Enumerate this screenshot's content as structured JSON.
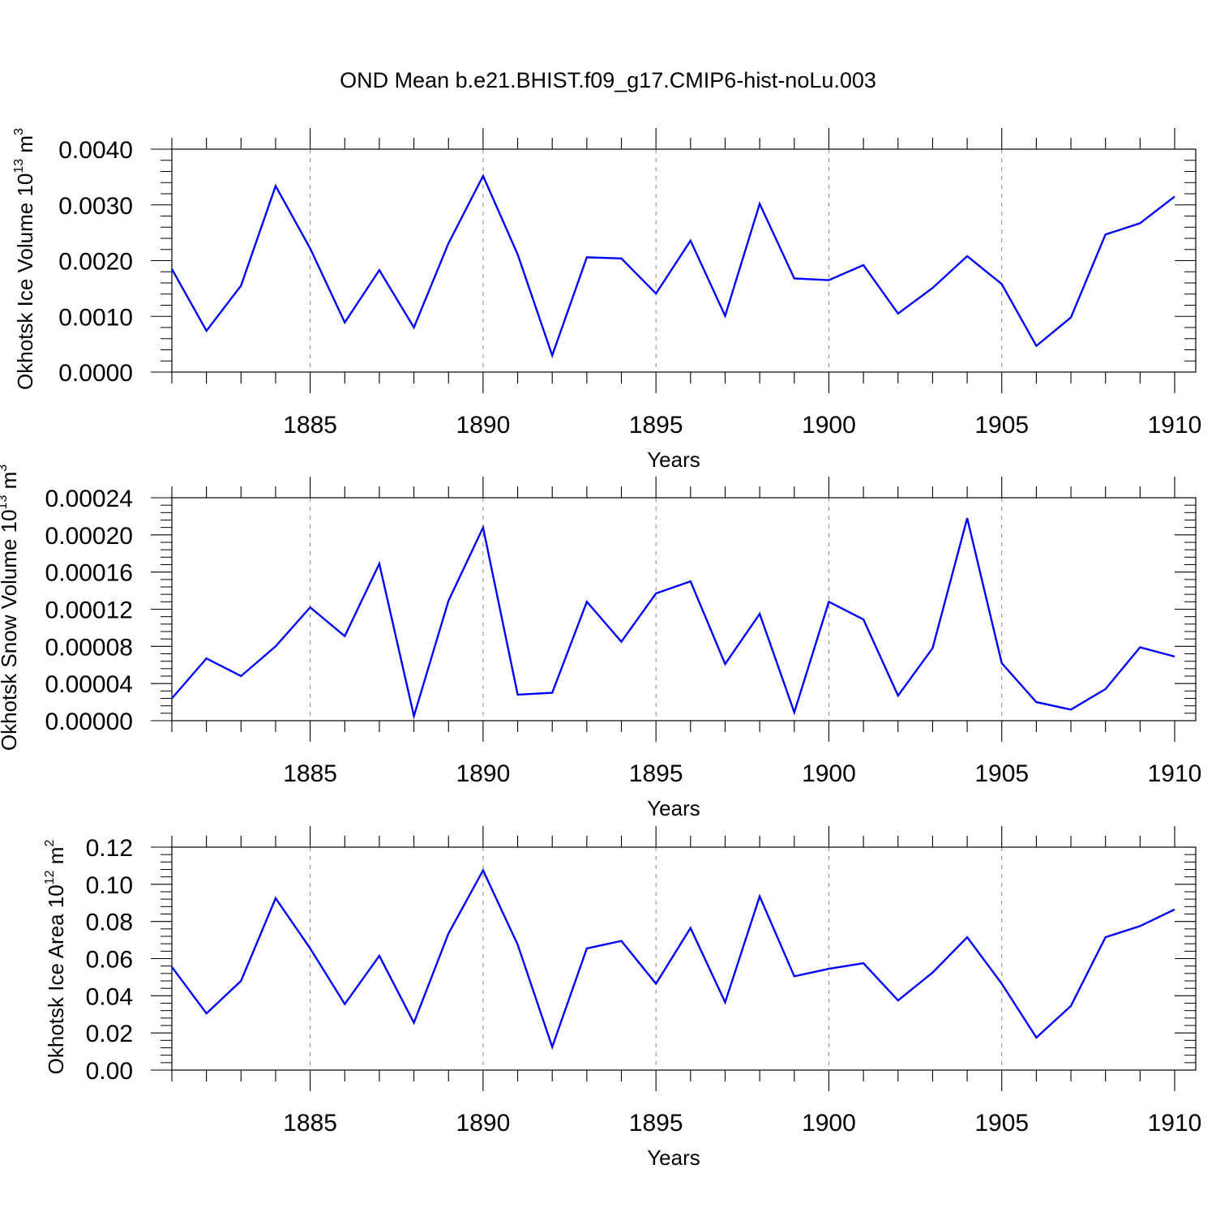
{
  "title": "OND Mean b.e21.BHIST.f09_g17.CMIP6-hist-noLu.003",
  "chart_data": [
    {
      "type": "line",
      "series_color": "#0000ff",
      "xlabel": "Years",
      "ylabel": "Okhotsk Ice Volume 10",
      "ylabel_exp": "13",
      "ylabel_unit": "m",
      "ylabel_unit_exp": "3",
      "xlim": [
        1881,
        1910
      ],
      "ylim": [
        0,
        0.004
      ],
      "yticks": [
        "0.0000",
        "0.0010",
        "0.0020",
        "0.0030",
        "0.0040"
      ],
      "ytick_values": [
        0,
        0.001,
        0.002,
        0.003,
        0.004
      ],
      "xticks": [
        "1885",
        "1890",
        "1895",
        "1900",
        "1905",
        "1910"
      ],
      "xtick_values": [
        1885,
        1890,
        1895,
        1900,
        1905,
        1910
      ],
      "x": [
        1881,
        1882,
        1883,
        1884,
        1885,
        1886,
        1887,
        1888,
        1889,
        1890,
        1891,
        1892,
        1893,
        1894,
        1895,
        1896,
        1897,
        1898,
        1899,
        1900,
        1901,
        1902,
        1903,
        1904,
        1905,
        1906,
        1907,
        1908,
        1909,
        1910
      ],
      "values": [
        0.00185,
        0.00074,
        0.00155,
        0.00334,
        0.00222,
        0.00089,
        0.00183,
        0.0008,
        0.00231,
        0.00352,
        0.00211,
        0.0003,
        0.00206,
        0.00204,
        0.00141,
        0.00236,
        0.00101,
        0.00302,
        0.00168,
        0.00165,
        0.00192,
        0.00105,
        0.00151,
        0.00208,
        0.00158,
        0.00047,
        0.00098,
        0.00247,
        0.00267,
        0.00315
      ]
    },
    {
      "type": "line",
      "series_color": "#0000ff",
      "xlabel": "Years",
      "ylabel": "Okhotsk Snow Volume 10",
      "ylabel_exp": "13",
      "ylabel_unit": "m",
      "ylabel_unit_exp": "3",
      "xlim": [
        1881,
        1910
      ],
      "ylim": [
        0,
        0.00024
      ],
      "yticks": [
        "0.00000",
        "0.00004",
        "0.00008",
        "0.00012",
        "0.00016",
        "0.00020",
        "0.00024"
      ],
      "ytick_values": [
        0,
        4e-05,
        8e-05,
        0.00012,
        0.00016,
        0.0002,
        0.00024
      ],
      "xticks": [
        "1885",
        "1890",
        "1895",
        "1900",
        "1905",
        "1910"
      ],
      "xtick_values": [
        1885,
        1890,
        1895,
        1900,
        1905,
        1910
      ],
      "x": [
        1881,
        1882,
        1883,
        1884,
        1885,
        1886,
        1887,
        1888,
        1889,
        1890,
        1891,
        1892,
        1893,
        1894,
        1895,
        1896,
        1897,
        1898,
        1899,
        1900,
        1901,
        1902,
        1903,
        1904,
        1905,
        1906,
        1907,
        1908,
        1909,
        1910
      ],
      "values": [
        2.4e-05,
        6.7e-05,
        4.8e-05,
        8e-05,
        0.000122,
        9.1e-05,
        0.000169,
        5e-06,
        0.000129,
        0.000208,
        2.8e-05,
        3e-05,
        0.000128,
        8.5e-05,
        0.000137,
        0.00015,
        6.1e-05,
        0.000115,
        9e-06,
        0.000128,
        0.000109,
        2.7e-05,
        7.8e-05,
        0.000218,
        6.2e-05,
        2e-05,
        1.2e-05,
        3.4e-05,
        7.9e-05,
        6.9e-05
      ]
    },
    {
      "type": "line",
      "series_color": "#0000ff",
      "xlabel": "Years",
      "ylabel": "Okhotsk Ice Area 10",
      "ylabel_exp": "12",
      "ylabel_unit": "m",
      "ylabel_unit_exp": "2",
      "xlim": [
        1881,
        1910
      ],
      "ylim": [
        0,
        0.12
      ],
      "yticks": [
        "0.00",
        "0.02",
        "0.04",
        "0.06",
        "0.08",
        "0.10",
        "0.12"
      ],
      "ytick_values": [
        0,
        0.02,
        0.04,
        0.06,
        0.08,
        0.1,
        0.12
      ],
      "xticks": [
        "1885",
        "1890",
        "1895",
        "1900",
        "1905",
        "1910"
      ],
      "xtick_values": [
        1885,
        1890,
        1895,
        1900,
        1905,
        1910
      ],
      "x": [
        1881,
        1882,
        1883,
        1884,
        1885,
        1886,
        1887,
        1888,
        1889,
        1890,
        1891,
        1892,
        1893,
        1894,
        1895,
        1896,
        1897,
        1898,
        1899,
        1900,
        1901,
        1902,
        1903,
        1904,
        1905,
        1906,
        1907,
        1908,
        1909,
        1910
      ],
      "values": [
        0.0555,
        0.0305,
        0.048,
        0.0925,
        0.0655,
        0.0355,
        0.0615,
        0.0255,
        0.0735,
        0.1075,
        0.0675,
        0.0125,
        0.0655,
        0.0695,
        0.0465,
        0.0765,
        0.0365,
        0.0935,
        0.0505,
        0.0545,
        0.0575,
        0.0375,
        0.0525,
        0.0715,
        0.0465,
        0.0175,
        0.0345,
        0.0715,
        0.0775,
        0.0865
      ]
    }
  ]
}
